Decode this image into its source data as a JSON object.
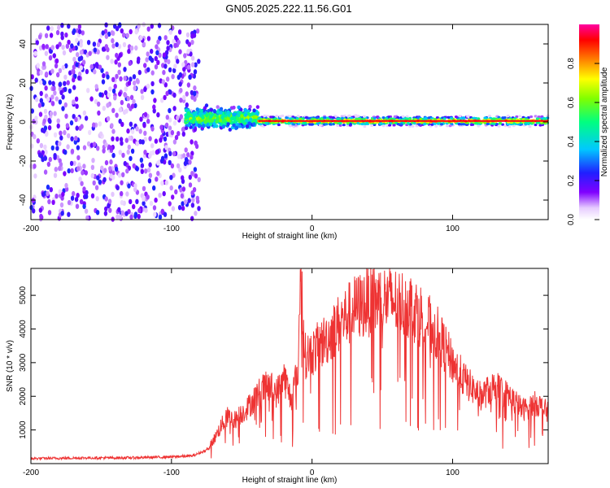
{
  "figure_title": "GN05.2025.222.11.56.G01",
  "colors": {
    "snr_line": "#ee3333",
    "axes": "#000000",
    "background": "#ffffff"
  },
  "chart_data": [
    {
      "type": "heatmap",
      "title": "",
      "xlabel": "Height of straight line (km)",
      "ylabel": "Frequency (Hz)",
      "xlim": [
        -200,
        168
      ],
      "ylim": [
        -50,
        50
      ],
      "x_ticks": [
        -200,
        -100,
        0,
        100
      ],
      "y_ticks": [
        -40,
        -20,
        0,
        20,
        40
      ],
      "colorbar": {
        "label": "Normalized spectral amplitude",
        "range": [
          0,
          1
        ],
        "ticks": [
          0.0,
          0.2,
          0.4,
          0.6,
          0.8
        ],
        "colormap": "white-purple-blue-cyan-green-yellow-red-magenta"
      },
      "regions": [
        {
          "name": "noise",
          "x": [
            -200,
            -80
          ],
          "freq": [
            -50,
            50
          ],
          "amplitude": 0.15
        },
        {
          "name": "transition",
          "x": [
            -90,
            -38
          ],
          "freq_center": 2,
          "freq_halfwidth": 7,
          "amplitude": 0.45
        },
        {
          "name": "signal",
          "x": [
            -38,
            168
          ],
          "freq_center": 0.5,
          "freq_halfwidth": 3,
          "amplitude": 0.95
        }
      ]
    },
    {
      "type": "line",
      "title": "",
      "xlabel": "Height of straight line (km)",
      "ylabel": "SNR (10 * v/v)",
      "xlim": [
        -200,
        168
      ],
      "ylim": [
        0,
        5800
      ],
      "x_ticks": [
        -200,
        -100,
        0,
        100
      ],
      "y_ticks": [
        1000,
        2000,
        3000,
        4000,
        5000
      ],
      "series": [
        {
          "x": [
            -200,
            -180,
            -160,
            -140,
            -120,
            -100,
            -85,
            -75,
            -70,
            -65,
            -60,
            -55,
            -50,
            -45,
            -40,
            -35,
            -30,
            -25,
            -20,
            -15,
            -10,
            -8,
            -5,
            0,
            10,
            20,
            30,
            40,
            50,
            60,
            70,
            80,
            90,
            100,
            110,
            120,
            130,
            140,
            150,
            160,
            168
          ],
          "values": [
            150,
            160,
            170,
            170,
            180,
            200,
            230,
            400,
            700,
            1100,
            1400,
            1300,
            1500,
            1700,
            2000,
            2200,
            2300,
            2100,
            2600,
            1900,
            2800,
            5800,
            3200,
            3300,
            3700,
            4200,
            4600,
            4800,
            4900,
            4800,
            4700,
            4300,
            3800,
            3000,
            2400,
            2000,
            2300,
            2000,
            1600,
            1800,
            1500
          ]
        }
      ]
    }
  ]
}
